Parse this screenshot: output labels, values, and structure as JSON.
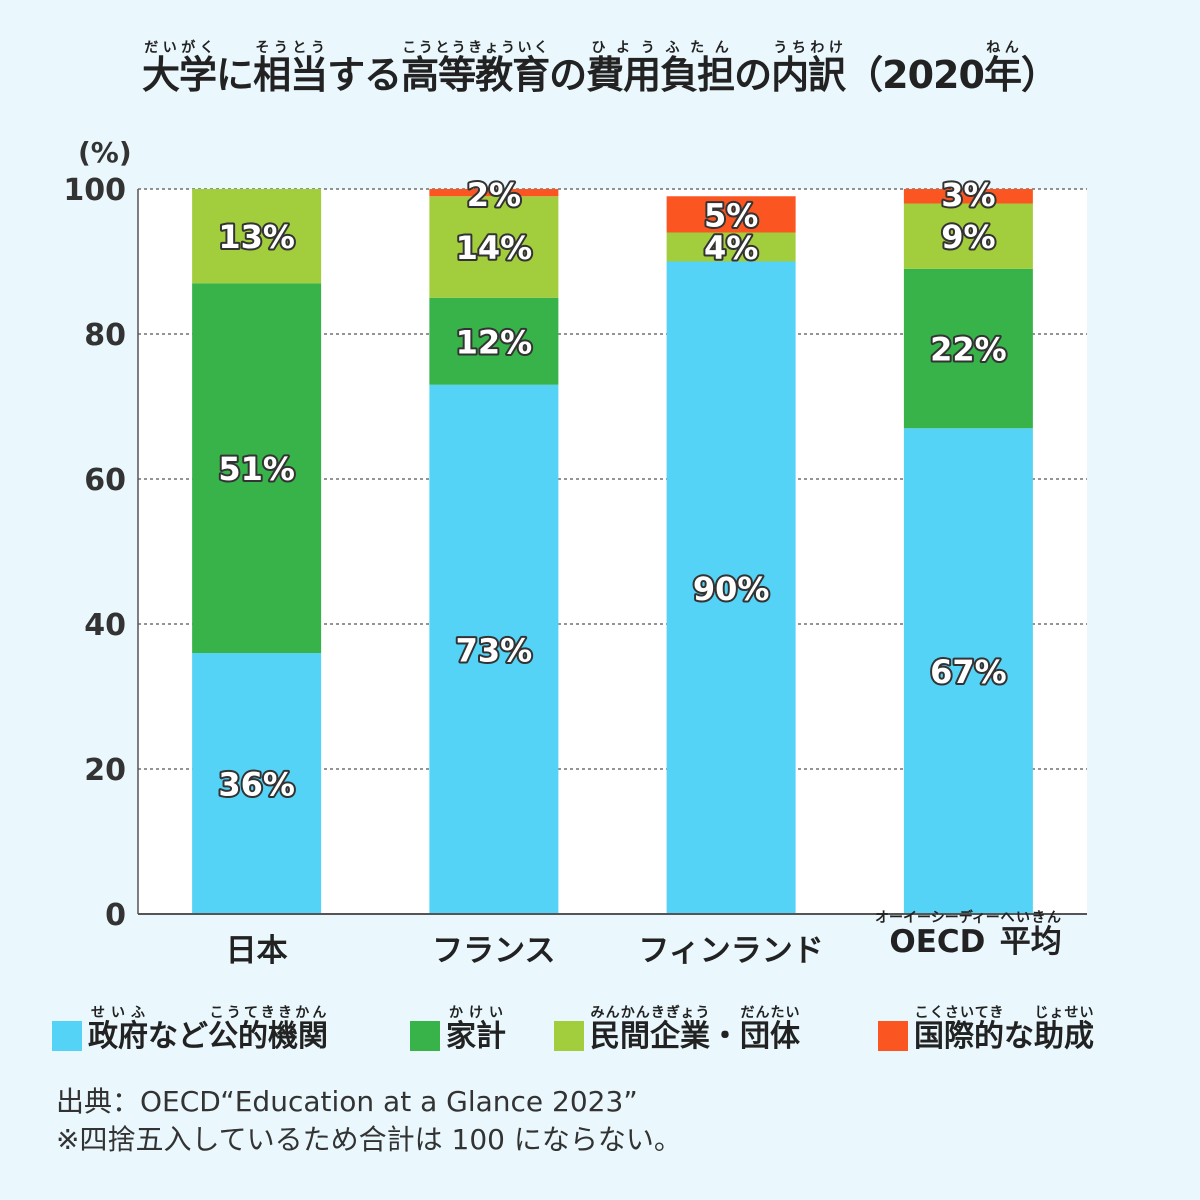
{
  "title_segments": [
    {
      "text": "大学",
      "ruby": "だいがく"
    },
    {
      "text": "に"
    },
    {
      "text": "相当",
      "ruby": "そうとう"
    },
    {
      "text": "する"
    },
    {
      "text": "高等教育",
      "ruby": "こうとうきょういく"
    },
    {
      "text": "の"
    },
    {
      "text": "費用負担",
      "ruby": "ひようふたん"
    },
    {
      "text": "の"
    },
    {
      "text": "内訳",
      "ruby": "うちわけ"
    },
    {
      "text": "（2020"
    },
    {
      "text": "年",
      "ruby": "ねん"
    },
    {
      "text": "）"
    }
  ],
  "chart_data": {
    "type": "bar",
    "stacked": true,
    "ylabel": "(%)",
    "ylim": [
      0,
      100
    ],
    "yticks": [
      0,
      20,
      40,
      60,
      80,
      100
    ],
    "grid": true,
    "categories": [
      {
        "segments": [
          {
            "text": "日本"
          }
        ]
      },
      {
        "segments": [
          {
            "text": "フランス"
          }
        ]
      },
      {
        "segments": [
          {
            "text": "フィンランド"
          }
        ]
      },
      {
        "segments": [
          {
            "text": "OECD",
            "ruby": "オーイーシーディー"
          },
          {
            "text": "平均",
            "ruby": "へいきん"
          }
        ]
      }
    ],
    "series": [
      {
        "name": "政府など公的機関",
        "name_segments": [
          {
            "text": "政府",
            "ruby": "せいふ"
          },
          {
            "text": "など"
          },
          {
            "text": "公的機関",
            "ruby": "こうてききかん"
          }
        ],
        "color": "#54d3f7",
        "values": [
          36,
          73,
          90,
          67
        ],
        "labels": [
          "36%",
          "73%",
          "90%",
          "67%"
        ]
      },
      {
        "name": "家計",
        "name_segments": [
          {
            "text": "家計",
            "ruby": "かけい"
          }
        ],
        "color": "#37b34a",
        "values": [
          51,
          12,
          0,
          22
        ],
        "labels": [
          "51%",
          "12%",
          "",
          "22%"
        ]
      },
      {
        "name": "民間企業・団体",
        "name_segments": [
          {
            "text": "民間企業",
            "ruby": "みんかんきぎょう"
          },
          {
            "text": "・"
          },
          {
            "text": "団体",
            "ruby": "だんたい"
          }
        ],
        "color": "#a2cd3c",
        "values": [
          13,
          14,
          4,
          9
        ],
        "labels": [
          "13%",
          "14%",
          "4%",
          "9%"
        ]
      },
      {
        "name": "国際的な助成",
        "name_segments": [
          {
            "text": "国際的",
            "ruby": "こくさいてき"
          },
          {
            "text": "な"
          },
          {
            "text": "助成",
            "ruby": "じょせい"
          }
        ],
        "color": "#fb5622",
        "values": [
          0,
          2,
          5,
          3
        ],
        "labels": [
          "",
          "2%",
          "5%",
          "3%"
        ]
      }
    ]
  },
  "source": {
    "line1": "出典：OECD“Education at a Glance 2023”",
    "line2": "※四捨五入しているため合計は 100 にならない。"
  }
}
